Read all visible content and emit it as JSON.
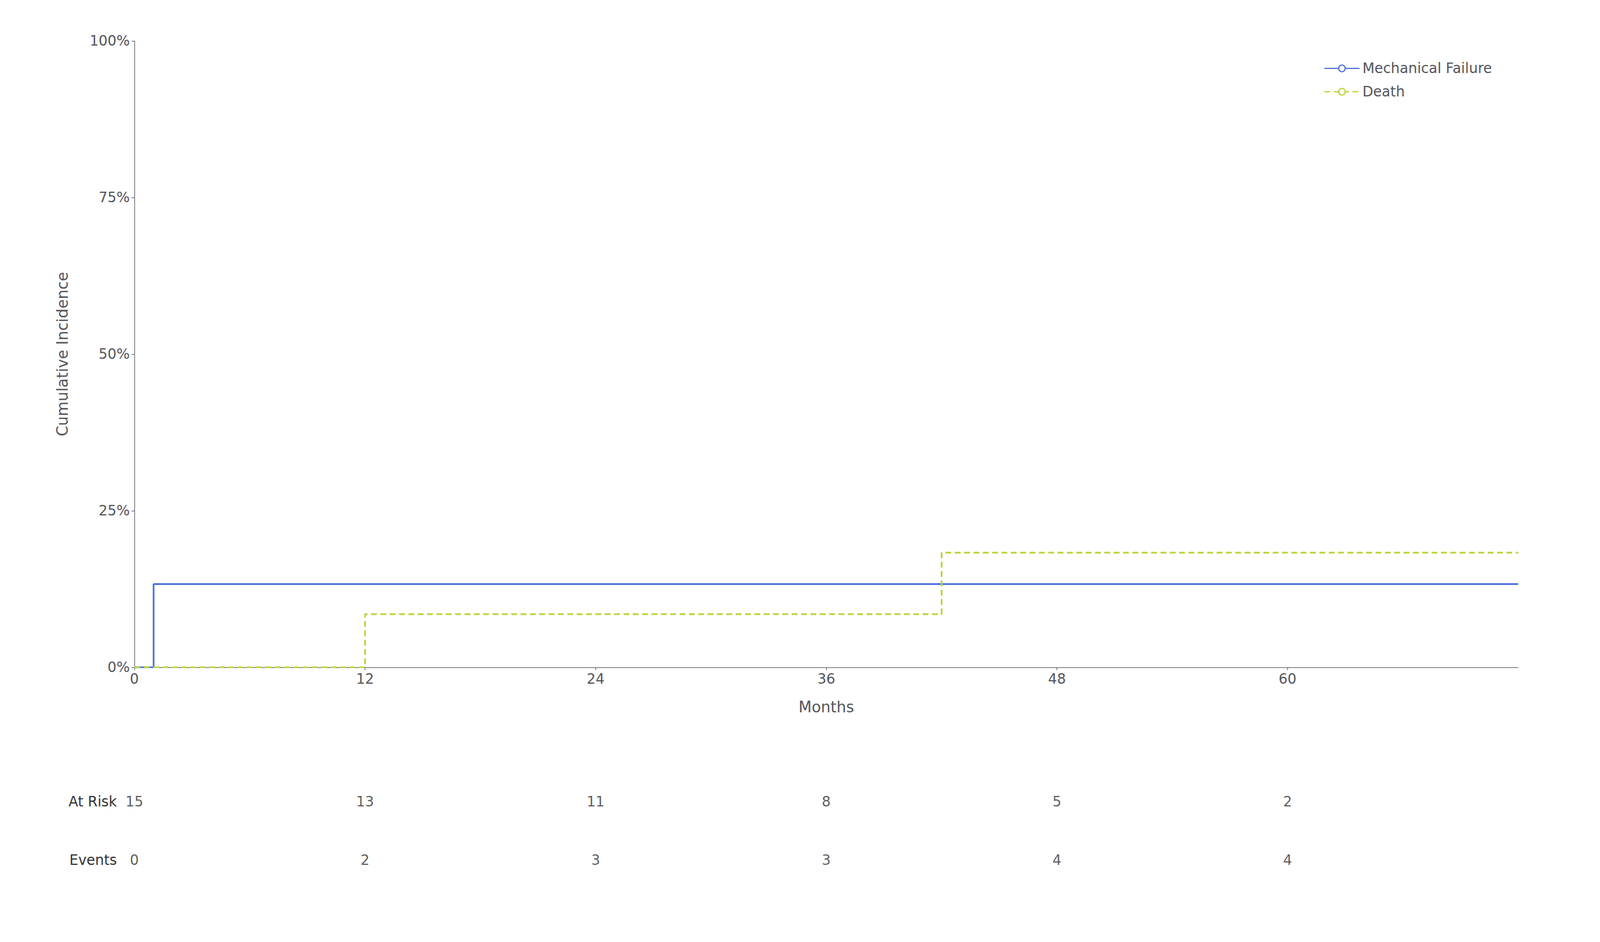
{
  "chart_data": {
    "type": "line",
    "xlabel": "Months",
    "ylabel": "Cumulative Incidence",
    "xlim": [
      0,
      72
    ],
    "xticks": [
      0,
      12,
      24,
      36,
      48,
      60
    ],
    "ylim": [
      0,
      1.0
    ],
    "yticks": [
      {
        "value": 0,
        "label": "0%"
      },
      {
        "value": 0.25,
        "label": "25%"
      },
      {
        "value": 0.5,
        "label": "50%"
      },
      {
        "value": 0.75,
        "label": "75%"
      },
      {
        "value": 1.0,
        "label": "100%"
      }
    ],
    "grid": false,
    "legend": "upper right",
    "series": [
      {
        "name": "Mechanical Failure",
        "line_style": "solid",
        "x": [
          0,
          1.0,
          1.0,
          72
        ],
        "values": [
          0.0,
          0.0,
          0.133,
          0.133
        ]
      },
      {
        "name": "Death",
        "line_style": "dashed",
        "x": [
          0,
          12,
          12,
          42,
          42,
          72
        ],
        "values": [
          0.0,
          0.0,
          0.085,
          0.085,
          0.183,
          0.183
        ]
      }
    ],
    "risk_table": {
      "x": [
        0,
        12,
        24,
        36,
        48,
        60
      ],
      "rows": [
        {
          "label": "At Risk",
          "values": [
            15,
            13,
            11,
            8,
            5,
            2
          ]
        },
        {
          "label": "Events",
          "values": [
            0,
            2,
            3,
            3,
            4,
            4
          ]
        }
      ]
    }
  }
}
